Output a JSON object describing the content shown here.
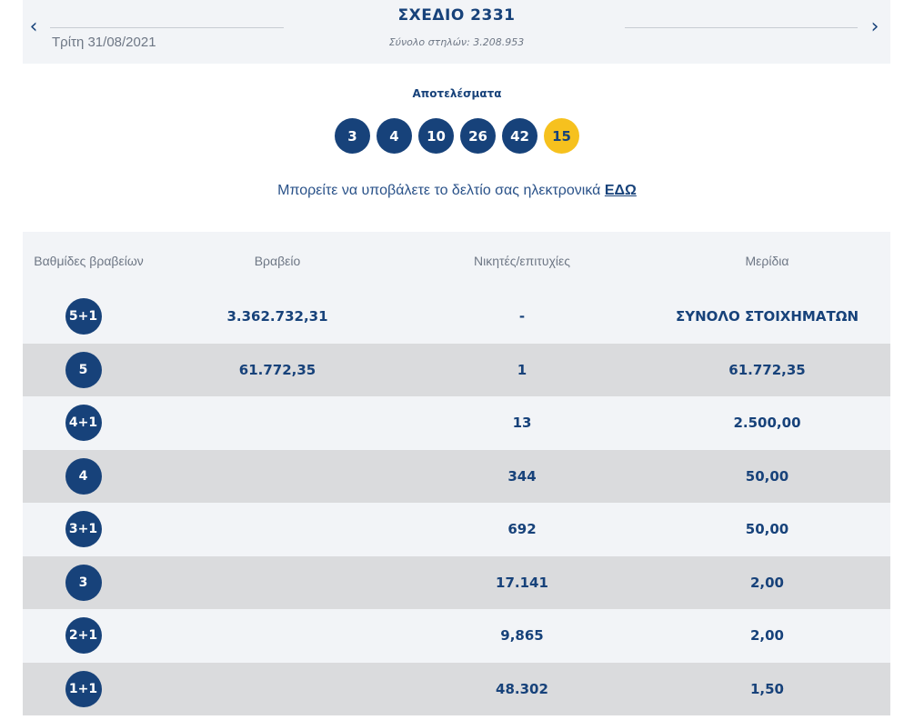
{
  "header": {
    "prev_arrow": "‹",
    "next_arrow": "›",
    "date": "Τρίτη 31/08/2021",
    "title": "ΣΧΕΔΙΟ 2331",
    "columns": "Σύνολο στηλών: 3.208.953"
  },
  "results": {
    "label": "Αποτελέσματα",
    "numbers": [
      "3",
      "4",
      "10",
      "26",
      "42"
    ],
    "joker": "15"
  },
  "submit": {
    "text": "Μπορείτε να υποβάλετε το δελτίο σας ηλεκτρονικά",
    "link": "ΕΔΩ"
  },
  "table": {
    "headers": [
      "Βαθμίδες βραβείων",
      "Βραβείο",
      "Νικητές/επιτυχίες",
      "Μερίδια"
    ],
    "rows": [
      {
        "tier": "5+1",
        "prize": "3.362.732,31",
        "winners": "-",
        "share": "ΣΥΝΟΛΟ ΣΤΟΙΧΗΜΑΤΩΝ"
      },
      {
        "tier": "5",
        "prize": "61.772,35",
        "winners": "1",
        "share": "61.772,35"
      },
      {
        "tier": "4+1",
        "prize": "",
        "winners": "13",
        "share": "2.500,00"
      },
      {
        "tier": "4",
        "prize": "",
        "winners": "344",
        "share": "50,00"
      },
      {
        "tier": "3+1",
        "prize": "",
        "winners": "692",
        "share": "50,00"
      },
      {
        "tier": "3",
        "prize": "",
        "winners": "17.141",
        "share": "2,00"
      },
      {
        "tier": "2+1",
        "prize": "",
        "winners": "9,865",
        "share": "2,00"
      },
      {
        "tier": "1+1",
        "prize": "",
        "winners": "48.302",
        "share": "1,50"
      }
    ]
  }
}
